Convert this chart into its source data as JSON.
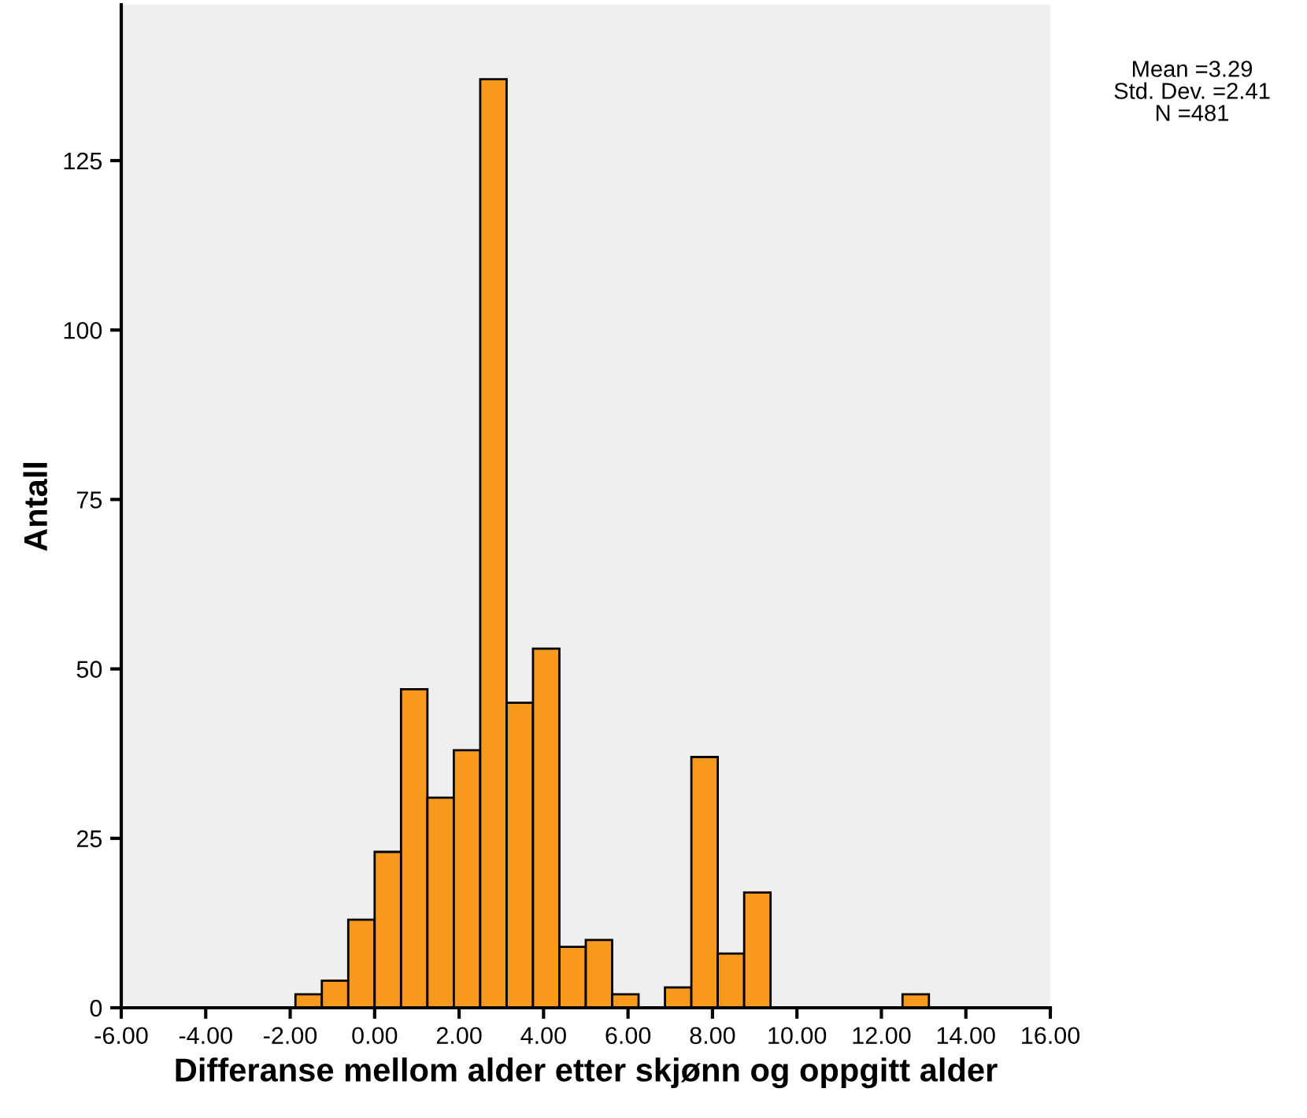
{
  "chart_data": {
    "type": "histogram",
    "xlabel": "Differanse mellom alder etter skjønn og oppgitt alder",
    "ylabel": "Antall",
    "bins": [
      -1.875,
      -1.25,
      -0.625,
      0,
      0.625,
      1.25,
      1.875,
      2.5,
      3.125,
      3.75,
      4.375,
      5,
      5.625,
      6.25,
      6.875,
      7.5,
      8.125,
      8.75,
      9.375,
      10,
      10.625,
      11.25,
      11.875,
      12.5,
      13.125
    ],
    "values": [
      2,
      4,
      13,
      23,
      47,
      31,
      38,
      137,
      45,
      53,
      9,
      10,
      2,
      0,
      3,
      37,
      8,
      17,
      0,
      0,
      0,
      0,
      0,
      2
    ],
    "color": "#f7991f",
    "xlim": [
      -6,
      16
    ],
    "xticks": [
      {
        "value": -6,
        "label": "-6.00"
      },
      {
        "value": -4,
        "label": "-4.00"
      },
      {
        "value": -2,
        "label": "-2.00"
      },
      {
        "value": 0,
        "label": "0.00"
      },
      {
        "value": 2,
        "label": "2.00"
      },
      {
        "value": 4,
        "label": "4.00"
      },
      {
        "value": 6,
        "label": "6.00"
      },
      {
        "value": 8,
        "label": "8.00"
      },
      {
        "value": 10,
        "label": "10.00"
      },
      {
        "value": 12,
        "label": "12.00"
      },
      {
        "value": 14,
        "label": "14.00"
      },
      {
        "value": 16,
        "label": "16.00"
      }
    ],
    "ylim": [
      0,
      148
    ],
    "yticks": [
      0,
      25,
      50,
      75,
      100,
      125
    ],
    "annotations": [
      "Mean =3.29",
      "Std. Dev. =2.41",
      "N =481"
    ],
    "grid": false
  }
}
